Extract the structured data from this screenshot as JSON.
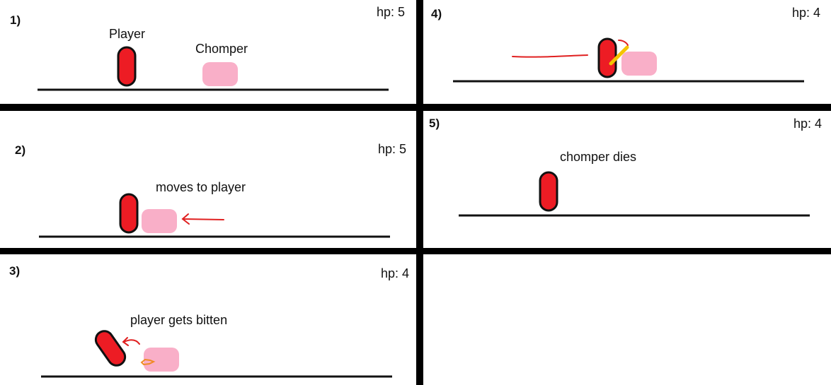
{
  "colors": {
    "background": "#ffffff",
    "divider": "#000000",
    "player_fill": "#ed1c24",
    "player_outline": "#111111",
    "chomper_fill": "#f9afc8",
    "arrow_red": "#e02020",
    "sword_yellow": "#f5c400",
    "bite_orange": "#f08a24"
  },
  "panels": [
    {
      "number": "1)",
      "hp": "hp: 5",
      "label_player": "Player",
      "label_chomper": "Chomper"
    },
    {
      "number": "2)",
      "hp": "hp: 5",
      "caption": "moves to player"
    },
    {
      "number": "3)",
      "hp": "hp: 4",
      "caption": "player gets bitten"
    },
    {
      "number": "4)",
      "hp": "hp: 4"
    },
    {
      "number": "5)",
      "hp": "hp: 4",
      "caption": "chomper dies"
    }
  ]
}
